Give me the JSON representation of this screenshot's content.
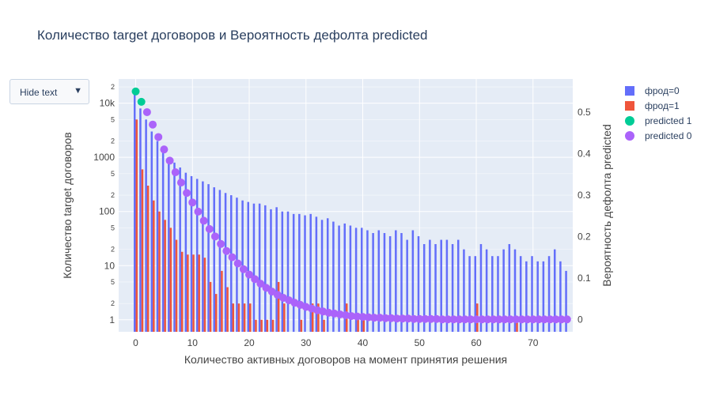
{
  "dropdown": {
    "label": "Hide text",
    "arrow": "▼"
  },
  "chart_data": {
    "type": "bar+scatter",
    "title": "Количество target договоров и Вероятность дефолта predicted",
    "xlabel": "Количество активных договоров на момент принятия решения",
    "ylabel": "Количество target договоров",
    "y2label": "Вероятность дефолта predicted",
    "xlim": [
      -3,
      77
    ],
    "ylim_log": [
      0.6,
      28000
    ],
    "y2lim": [
      -0.03,
      0.58
    ],
    "x_ticks": [
      0,
      10,
      20,
      30,
      40,
      50,
      60,
      70
    ],
    "y_ticks_major": [
      {
        "v": 1,
        "t": "1"
      },
      {
        "v": 10,
        "t": "10"
      },
      {
        "v": 100,
        "t": "100"
      },
      {
        "v": 1000,
        "t": "1000"
      },
      {
        "v": 10000,
        "t": "10k"
      }
    ],
    "y_ticks_minor": [
      {
        "v": 2,
        "t": "2"
      },
      {
        "v": 5,
        "t": "5"
      },
      {
        "v": 20,
        "t": "2"
      },
      {
        "v": 50,
        "t": "5"
      },
      {
        "v": 200,
        "t": "2"
      },
      {
        "v": 500,
        "t": "5"
      },
      {
        "v": 2000,
        "t": "2"
      },
      {
        "v": 5000,
        "t": "5"
      },
      {
        "v": 20000,
        "t": "2"
      }
    ],
    "y2_ticks": [
      {
        "v": 0,
        "t": "0"
      },
      {
        "v": 0.1,
        "t": "0.1"
      },
      {
        "v": 0.2,
        "t": "0.2"
      },
      {
        "v": 0.3,
        "t": "0.3"
      },
      {
        "v": 0.4,
        "t": "0.4"
      },
      {
        "v": 0.5,
        "t": "0.5"
      }
    ],
    "log_scale_y": true,
    "grid": true,
    "legend_position": "top-right",
    "series": [
      {
        "name": "фрод=0",
        "type": "bar",
        "color": "#636efa",
        "x": [
          0,
          1,
          2,
          3,
          4,
          5,
          6,
          7,
          8,
          9,
          10,
          11,
          12,
          13,
          14,
          15,
          16,
          17,
          18,
          19,
          20,
          21,
          22,
          23,
          24,
          25,
          26,
          27,
          28,
          29,
          30,
          31,
          32,
          33,
          34,
          35,
          36,
          37,
          38,
          39,
          40,
          41,
          42,
          43,
          44,
          45,
          46,
          47,
          48,
          49,
          50,
          51,
          52,
          53,
          54,
          55,
          56,
          57,
          58,
          59,
          60,
          61,
          62,
          63,
          64,
          65,
          66,
          67,
          68,
          69,
          70,
          71,
          72,
          73,
          74,
          75,
          76
        ],
        "values": [
          15000,
          8000,
          5000,
          3000,
          2000,
          1400,
          1000,
          800,
          650,
          520,
          450,
          400,
          360,
          320,
          280,
          250,
          220,
          200,
          180,
          160,
          150,
          140,
          140,
          130,
          110,
          120,
          100,
          100,
          90,
          90,
          85,
          90,
          80,
          70,
          75,
          65,
          55,
          60,
          55,
          50,
          50,
          45,
          40,
          45,
          40,
          35,
          45,
          40,
          30,
          45,
          35,
          25,
          30,
          25,
          30,
          30,
          25,
          30,
          20,
          15,
          15,
          25,
          20,
          15,
          15,
          20,
          25,
          20,
          15,
          12,
          15,
          12,
          12,
          15,
          20,
          12,
          8
        ]
      },
      {
        "name": "фрод=1",
        "type": "bar",
        "color": "#ef553b",
        "x": [
          0,
          1,
          2,
          3,
          4,
          5,
          6,
          7,
          8,
          9,
          10,
          11,
          12,
          13,
          14,
          15,
          16,
          17,
          18,
          19,
          20,
          21,
          22,
          23,
          24,
          25,
          26,
          28,
          29,
          30,
          31,
          32,
          33,
          36,
          37,
          39,
          40,
          60,
          67
        ],
        "values": [
          5000,
          600,
          300,
          160,
          100,
          70,
          50,
          30,
          18,
          16,
          16,
          16,
          14,
          5,
          3,
          8,
          4,
          2,
          2,
          2,
          2,
          1,
          1,
          1,
          1,
          5,
          2,
          0,
          1,
          0,
          2,
          2,
          1,
          0,
          2,
          1,
          1,
          2,
          1
        ]
      },
      {
        "name": "predicted 1",
        "type": "scatter",
        "color": "#00cc96",
        "x": [
          0,
          1
        ],
        "values": [
          0.55,
          0.525
        ]
      },
      {
        "name": "predicted 0",
        "type": "scatter",
        "color": "#ab63fa",
        "x": [
          2,
          3,
          4,
          5,
          6,
          7,
          8,
          9,
          10,
          11,
          12,
          13,
          14,
          15,
          16,
          17,
          18,
          19,
          20,
          21,
          22,
          23,
          24,
          25,
          26,
          27,
          28,
          29,
          30,
          31,
          32,
          33,
          34,
          35,
          36,
          37,
          38,
          39,
          40,
          41,
          42,
          43,
          44,
          45,
          46,
          47,
          48,
          49,
          50,
          51,
          52,
          53,
          54,
          55,
          56,
          57,
          58,
          59,
          60,
          61,
          62,
          63,
          64,
          65,
          66,
          67,
          68,
          69,
          70,
          71,
          72,
          73,
          74,
          75,
          76
        ],
        "values": [
          0.5,
          0.47,
          0.44,
          0.41,
          0.383,
          0.355,
          0.33,
          0.305,
          0.282,
          0.26,
          0.238,
          0.218,
          0.2,
          0.182,
          0.165,
          0.15,
          0.135,
          0.121,
          0.108,
          0.097,
          0.086,
          0.076,
          0.067,
          0.059,
          0.052,
          0.046,
          0.04,
          0.035,
          0.03,
          0.026,
          0.022,
          0.019,
          0.016,
          0.014,
          0.012,
          0.01,
          0.008,
          0.007,
          0.006,
          0.005,
          0.004,
          0.004,
          0.003,
          0.003,
          0.002,
          0.002,
          0.002,
          0.001,
          0.001,
          0.001,
          0.001,
          0.001,
          0,
          0,
          0,
          0,
          0,
          0,
          0,
          0,
          0,
          0,
          0,
          0,
          0,
          0,
          0,
          0,
          0,
          0,
          0,
          0,
          0,
          0,
          0
        ]
      }
    ]
  }
}
